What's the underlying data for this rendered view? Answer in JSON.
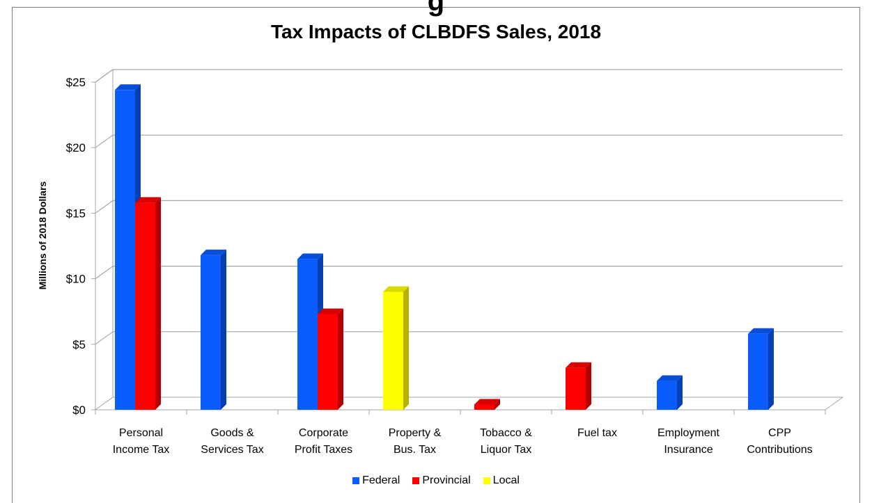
{
  "top_fragment": "g",
  "chart_data": {
    "type": "bar",
    "title": "Tax Impacts of CLBDFS Sales, 2018",
    "ylabel": "Millions of 2018 Dollars",
    "xlabel": "",
    "ylim": [
      0,
      25
    ],
    "yticks": [
      "$0",
      "$5",
      "$10",
      "$15",
      "$20",
      "$25"
    ],
    "categories": [
      [
        "Personal",
        "Income Tax"
      ],
      [
        "Goods &",
        "Services Tax"
      ],
      [
        "Corporate",
        "Profit Taxes"
      ],
      [
        "Property &",
        "Bus. Tax"
      ],
      [
        "Tobacco &",
        "Liquor Tax"
      ],
      [
        "Fuel tax"
      ],
      [
        "Employment",
        "Insurance"
      ],
      [
        "CPP",
        "Contributions"
      ]
    ],
    "series": [
      {
        "name": "Federal",
        "color": "#0a5cff",
        "values": [
          24.4,
          11.8,
          11.5,
          null,
          null,
          null,
          2.2,
          5.8
        ]
      },
      {
        "name": "Provincial",
        "color": "#ff0000",
        "values": [
          15.8,
          null,
          7.3,
          null,
          0.4,
          3.2,
          null,
          null
        ]
      },
      {
        "name": "Local",
        "color": "#ffff00",
        "values": [
          null,
          null,
          null,
          9.0,
          null,
          null,
          null,
          null
        ]
      }
    ],
    "grid": true,
    "legend_position": "bottom"
  }
}
